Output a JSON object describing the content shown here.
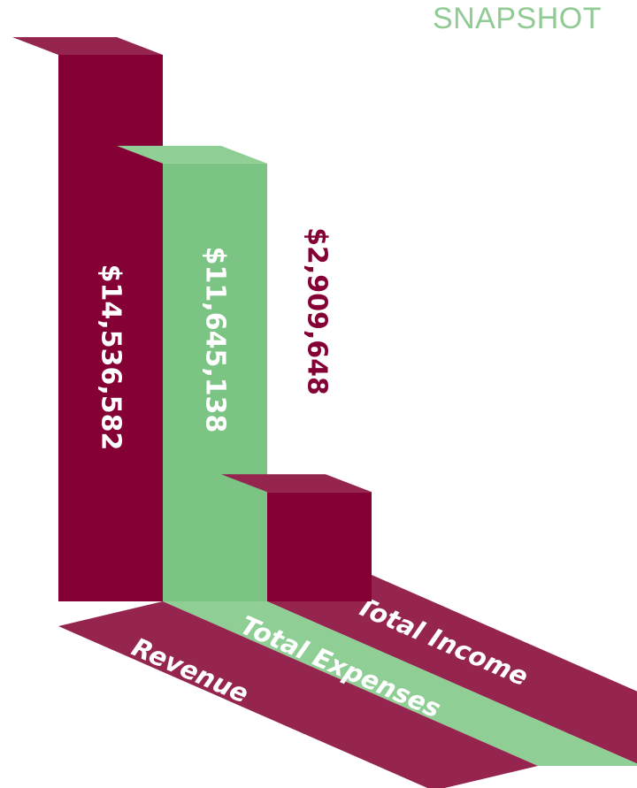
{
  "header": {
    "title": "SNAPSHOT"
  },
  "colors": {
    "maroon": "#850035",
    "maroon_top": "#95244f",
    "maroon_floor": "#95244f",
    "green": "#7bc484",
    "green_top": "#8fcf95",
    "green_floor": "#8fcf95",
    "title_green": "#8fcb93",
    "white": "#ffffff"
  },
  "chart_data": {
    "type": "bar",
    "categories": [
      "Revenue",
      "Total Expenses",
      "Total Income"
    ],
    "values": [
      14536582,
      11645138,
      2909648
    ],
    "value_labels": [
      "$14,536,582",
      "$11,645,138",
      "$2,909,648"
    ]
  }
}
